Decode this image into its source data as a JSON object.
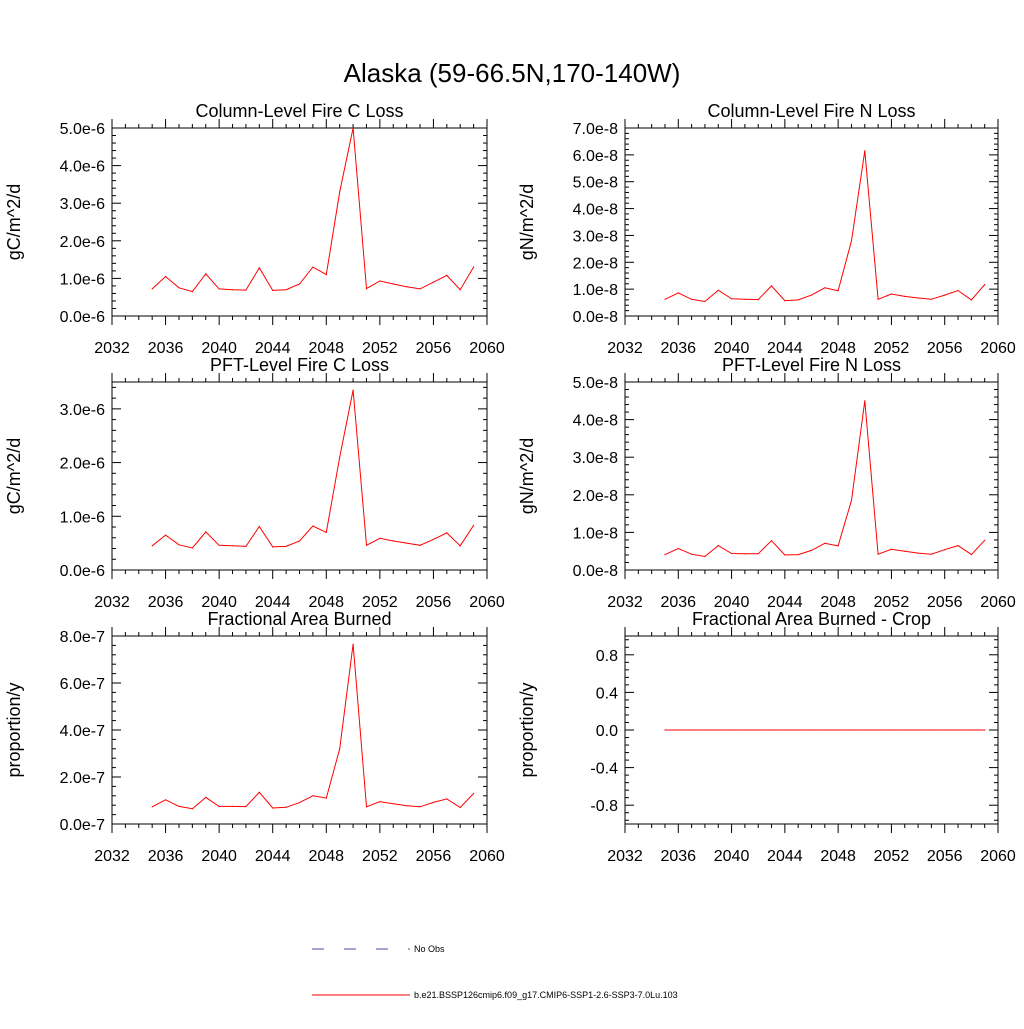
{
  "main_title": "Alaska (59-66.5N,170-140W)",
  "legend": [
    {
      "label": "No Obs",
      "color": "#4a4a9a",
      "style": "dashed"
    },
    {
      "label": "b.e21.BSSP126cmip6.f09_g17.CMIP6-SSP1-2.6-SSP3-7.0Lu.103",
      "color": "#ff0000",
      "style": "solid"
    }
  ],
  "colors": {
    "series": "#ff0000",
    "axis": "#000000"
  },
  "chart_data": [
    {
      "type": "line",
      "title": "Column-Level Fire C Loss",
      "ylabel": "gC/m^2/d",
      "xlim": [
        2032,
        2060
      ],
      "x_ticks": [
        "2032",
        "2036",
        "2040",
        "2044",
        "2048",
        "2052",
        "2056",
        "2060"
      ],
      "ylim": [
        0,
        5e-06
      ],
      "y_ticks": [
        {
          "v": 0,
          "label": "0.0e-6"
        },
        {
          "v": 1e-06,
          "label": "1.0e-6"
        },
        {
          "v": 2e-06,
          "label": "2.0e-6"
        },
        {
          "v": 3e-06,
          "label": "3.0e-6"
        },
        {
          "v": 4e-06,
          "label": "4.0e-6"
        },
        {
          "v": 5e-06,
          "label": "5.0e-6"
        }
      ],
      "x": [
        2035,
        2036,
        2037,
        2038,
        2039,
        2040,
        2041,
        2042,
        2043,
        2044,
        2045,
        2046,
        2047,
        2048,
        2049,
        2050,
        2051,
        2052,
        2053,
        2054,
        2055,
        2056,
        2057,
        2058,
        2059
      ],
      "series": [
        {
          "values": [
            7.2e-07,
            1.05e-06,
            7.5e-07,
            6.5e-07,
            1.12e-06,
            7.2e-07,
            7e-07,
            6.9e-07,
            1.28e-06,
            6.8e-07,
            7e-07,
            8.5e-07,
            1.3e-06,
            1.1e-06,
            3.3e-06,
            5e-06,
            7.3e-07,
            9.3e-07,
            8.5e-07,
            7.8e-07,
            7.2e-07,
            9e-07,
            1.08e-06,
            7e-07,
            1.3e-06
          ]
        }
      ]
    },
    {
      "type": "line",
      "title": "Column-Level Fire N Loss",
      "ylabel": "gN/m^2/d",
      "xlim": [
        2032,
        2060
      ],
      "x_ticks": [
        "2032",
        "2036",
        "2040",
        "2044",
        "2048",
        "2052",
        "2056",
        "2060"
      ],
      "ylim": [
        0,
        7e-08
      ],
      "y_ticks": [
        {
          "v": 0,
          "label": "0.0e-8"
        },
        {
          "v": 1e-08,
          "label": "1.0e-8"
        },
        {
          "v": 2e-08,
          "label": "2.0e-8"
        },
        {
          "v": 3e-08,
          "label": "3.0e-8"
        },
        {
          "v": 4e-08,
          "label": "4.0e-8"
        },
        {
          "v": 5e-08,
          "label": "5.0e-8"
        },
        {
          "v": 6e-08,
          "label": "6.0e-8"
        },
        {
          "v": 7e-08,
          "label": "7.0e-8"
        }
      ],
      "x": [
        2035,
        2036,
        2037,
        2038,
        2039,
        2040,
        2041,
        2042,
        2043,
        2044,
        2045,
        2046,
        2047,
        2048,
        2049,
        2050,
        2051,
        2052,
        2053,
        2054,
        2055,
        2056,
        2057,
        2058,
        2059
      ],
      "series": [
        {
          "values": [
            6.2e-09,
            8.6e-09,
            6.2e-09,
            5.4e-09,
            9.6e-09,
            6.4e-09,
            6.2e-09,
            6.1e-09,
            1.12e-08,
            5.7e-09,
            6e-09,
            7.8e-09,
            1.05e-08,
            9.4e-09,
            2.8e-08,
            6.15e-08,
            6.2e-09,
            8.2e-09,
            7.3e-09,
            6.7e-09,
            6.2e-09,
            7.8e-09,
            9.5e-09,
            6e-09,
            1.17e-08
          ]
        }
      ]
    },
    {
      "type": "line",
      "title": "PFT-Level Fire C Loss",
      "ylabel": "gC/m^2/d",
      "xlim": [
        2032,
        2060
      ],
      "x_ticks": [
        "2032",
        "2036",
        "2040",
        "2044",
        "2048",
        "2052",
        "2056",
        "2060"
      ],
      "ylim": [
        0,
        3.5e-06
      ],
      "y_ticks": [
        {
          "v": 0,
          "label": "0.0e-6"
        },
        {
          "v": 1e-06,
          "label": "1.0e-6"
        },
        {
          "v": 2e-06,
          "label": "2.0e-6"
        },
        {
          "v": 3e-06,
          "label": "3.0e-6"
        }
      ],
      "x": [
        2035,
        2036,
        2037,
        2038,
        2039,
        2040,
        2041,
        2042,
        2043,
        2044,
        2045,
        2046,
        2047,
        2048,
        2049,
        2050,
        2051,
        2052,
        2053,
        2054,
        2055,
        2056,
        2057,
        2058,
        2059
      ],
      "series": [
        {
          "values": [
            4.5e-07,
            6.5e-07,
            4.7e-07,
            4.1e-07,
            7.1e-07,
            4.6e-07,
            4.5e-07,
            4.4e-07,
            8.1e-07,
            4.3e-07,
            4.4e-07,
            5.4e-07,
            8.2e-07,
            7e-07,
            2.1e-06,
            3.35e-06,
            4.6e-07,
            5.9e-07,
            5.4e-07,
            5e-07,
            4.6e-07,
            5.7e-07,
            6.9e-07,
            4.5e-07,
            8.3e-07
          ]
        }
      ]
    },
    {
      "type": "line",
      "title": "PFT-Level Fire N Loss",
      "ylabel": "gN/m^2/d",
      "xlim": [
        2032,
        2060
      ],
      "x_ticks": [
        "2032",
        "2036",
        "2040",
        "2044",
        "2048",
        "2052",
        "2056",
        "2060"
      ],
      "ylim": [
        0,
        5e-08
      ],
      "y_ticks": [
        {
          "v": 0,
          "label": "0.0e-8"
        },
        {
          "v": 1e-08,
          "label": "1.0e-8"
        },
        {
          "v": 2e-08,
          "label": "2.0e-8"
        },
        {
          "v": 3e-08,
          "label": "3.0e-8"
        },
        {
          "v": 4e-08,
          "label": "4.0e-8"
        },
        {
          "v": 5e-08,
          "label": "5.0e-8"
        }
      ],
      "x": [
        2035,
        2036,
        2037,
        2038,
        2039,
        2040,
        2041,
        2042,
        2043,
        2044,
        2045,
        2046,
        2047,
        2048,
        2049,
        2050,
        2051,
        2052,
        2053,
        2054,
        2055,
        2056,
        2057,
        2058,
        2059
      ],
      "series": [
        {
          "values": [
            4.1e-09,
            5.7e-09,
            4.2e-09,
            3.6e-09,
            6.5e-09,
            4.4e-09,
            4.3e-09,
            4.3e-09,
            7.8e-09,
            4e-09,
            4.1e-09,
            5.2e-09,
            7.1e-09,
            6.4e-09,
            1.85e-08,
            4.5e-08,
            4.2e-09,
            5.5e-09,
            5e-09,
            4.5e-09,
            4.2e-09,
            5.4e-09,
            6.5e-09,
            4.1e-09,
            7.9e-09
          ]
        }
      ]
    },
    {
      "type": "line",
      "title": "Fractional Area Burned",
      "ylabel": "proportion/y",
      "xlim": [
        2032,
        2060
      ],
      "x_ticks": [
        "2032",
        "2036",
        "2040",
        "2044",
        "2048",
        "2052",
        "2056",
        "2060"
      ],
      "ylim": [
        0,
        8e-07
      ],
      "y_ticks": [
        {
          "v": 0,
          "label": "0.0e-7"
        },
        {
          "v": 2e-07,
          "label": "2.0e-7"
        },
        {
          "v": 4e-07,
          "label": "4.0e-7"
        },
        {
          "v": 6e-07,
          "label": "6.0e-7"
        },
        {
          "v": 8e-07,
          "label": "8.0e-7"
        }
      ],
      "x": [
        2035,
        2036,
        2037,
        2038,
        2039,
        2040,
        2041,
        2042,
        2043,
        2044,
        2045,
        2046,
        2047,
        2048,
        2049,
        2050,
        2051,
        2052,
        2053,
        2054,
        2055,
        2056,
        2057,
        2058,
        2059
      ],
      "series": [
        {
          "values": [
            7.3e-08,
            1.03e-07,
            7.5e-08,
            6.5e-08,
            1.13e-07,
            7.5e-08,
            7.5e-08,
            7.4e-08,
            1.35e-07,
            6.8e-08,
            7.1e-08,
            9.1e-08,
            1.2e-07,
            1.1e-07,
            3.2e-07,
            7.65e-07,
            7.3e-08,
            9.5e-08,
            8.6e-08,
            7.8e-08,
            7.3e-08,
            9.2e-08,
            1.07e-07,
            7e-08,
            1.3e-07
          ]
        }
      ]
    },
    {
      "type": "line",
      "title": "Fractional Area Burned - Crop",
      "ylabel": "proportion/y",
      "xlim": [
        2032,
        2060
      ],
      "x_ticks": [
        "2032",
        "2036",
        "2040",
        "2044",
        "2048",
        "2052",
        "2056",
        "2060"
      ],
      "ylim": [
        -1.0,
        1.0
      ],
      "y_ticks": [
        {
          "v": -0.8,
          "label": "-0.8"
        },
        {
          "v": -0.4,
          "label": "-0.4"
        },
        {
          "v": 0,
          "label": "0.0"
        },
        {
          "v": 0.4,
          "label": "0.4"
        },
        {
          "v": 0.8,
          "label": "0.8"
        }
      ],
      "x": [
        2035,
        2036,
        2037,
        2038,
        2039,
        2040,
        2041,
        2042,
        2043,
        2044,
        2045,
        2046,
        2047,
        2048,
        2049,
        2050,
        2051,
        2052,
        2053,
        2054,
        2055,
        2056,
        2057,
        2058,
        2059
      ],
      "series": [
        {
          "values": [
            0,
            0,
            0,
            0,
            0,
            0,
            0,
            0,
            0,
            0,
            0,
            0,
            0,
            0,
            0,
            0,
            0,
            0,
            0,
            0,
            0,
            0,
            0,
            0,
            0
          ]
        }
      ]
    }
  ]
}
